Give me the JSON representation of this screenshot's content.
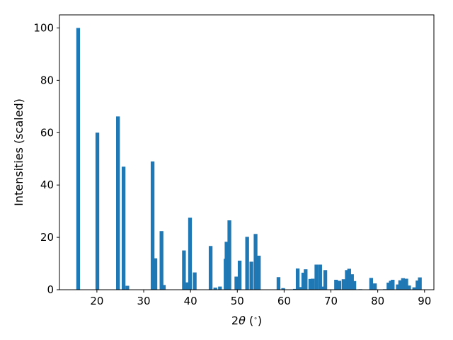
{
  "chart_data": {
    "type": "bar",
    "title": "",
    "xlabel": "2θ (°)",
    "xlabel_parts": {
      "prefix": "2",
      "symbol": "θ",
      "unit_open": " (",
      "unit": "∘",
      "unit_close": ")"
    },
    "ylabel": "Intensities (scaled)",
    "xlim": [
      12,
      92
    ],
    "ylim": [
      0,
      105
    ],
    "xticks": [
      20,
      30,
      40,
      50,
      60,
      70,
      80,
      90
    ],
    "yticks": [
      0,
      20,
      40,
      60,
      80,
      100
    ],
    "grid": false,
    "color": "#1f77b4",
    "points": [
      {
        "x": 16.0,
        "y": 100
      },
      {
        "x": 20.1,
        "y": 60
      },
      {
        "x": 24.5,
        "y": 66.2
      },
      {
        "x": 25.7,
        "y": 47
      },
      {
        "x": 26.5,
        "y": 1.5
      },
      {
        "x": 31.9,
        "y": 49
      },
      {
        "x": 32.5,
        "y": 12
      },
      {
        "x": 33.8,
        "y": 22.4
      },
      {
        "x": 34.3,
        "y": 1.8
      },
      {
        "x": 38.6,
        "y": 15
      },
      {
        "x": 39.4,
        "y": 2.8
      },
      {
        "x": 39.9,
        "y": 27.5
      },
      {
        "x": 40.9,
        "y": 6.6
      },
      {
        "x": 44.3,
        "y": 16.7
      },
      {
        "x": 45.3,
        "y": 0.8
      },
      {
        "x": 46.3,
        "y": 1.2
      },
      {
        "x": 47.5,
        "y": 11.8
      },
      {
        "x": 47.7,
        "y": 18.3
      },
      {
        "x": 48.3,
        "y": 26.5
      },
      {
        "x": 49.8,
        "y": 5
      },
      {
        "x": 50.5,
        "y": 11.1
      },
      {
        "x": 52.1,
        "y": 20.2
      },
      {
        "x": 53.0,
        "y": 10.7
      },
      {
        "x": 53.9,
        "y": 21.3
      },
      {
        "x": 54.6,
        "y": 13
      },
      {
        "x": 58.8,
        "y": 4.8
      },
      {
        "x": 59.8,
        "y": 0.6
      },
      {
        "x": 62.3,
        "y": 0.3
      },
      {
        "x": 62.9,
        "y": 8.1
      },
      {
        "x": 63.5,
        "y": 1
      },
      {
        "x": 64.1,
        "y": 6.5
      },
      {
        "x": 64.6,
        "y": 7.8
      },
      {
        "x": 65.6,
        "y": 4.1
      },
      {
        "x": 66.1,
        "y": 4.2
      },
      {
        "x": 66.9,
        "y": 9.6
      },
      {
        "x": 67.7,
        "y": 9.6
      },
      {
        "x": 68.3,
        "y": 1.2
      },
      {
        "x": 68.8,
        "y": 7.5
      },
      {
        "x": 71.1,
        "y": 3.8
      },
      {
        "x": 71.8,
        "y": 3.4
      },
      {
        "x": 72.7,
        "y": 4
      },
      {
        "x": 73.4,
        "y": 7.5
      },
      {
        "x": 73.9,
        "y": 8
      },
      {
        "x": 74.5,
        "y": 5.9
      },
      {
        "x": 75.0,
        "y": 3.3
      },
      {
        "x": 76.3,
        "y": 0.2
      },
      {
        "x": 78.6,
        "y": 4.5
      },
      {
        "x": 79.4,
        "y": 2.4
      },
      {
        "x": 81.5,
        "y": 0.2
      },
      {
        "x": 82.3,
        "y": 2.7
      },
      {
        "x": 82.8,
        "y": 3.4
      },
      {
        "x": 83.2,
        "y": 3.8
      },
      {
        "x": 84.3,
        "y": 2
      },
      {
        "x": 84.8,
        "y": 3.6
      },
      {
        "x": 85.4,
        "y": 4.4
      },
      {
        "x": 86.1,
        "y": 4.2
      },
      {
        "x": 86.7,
        "y": 1.6
      },
      {
        "x": 87.8,
        "y": 0.9
      },
      {
        "x": 88.5,
        "y": 3.5
      },
      {
        "x": 89.0,
        "y": 4.7
      }
    ]
  }
}
